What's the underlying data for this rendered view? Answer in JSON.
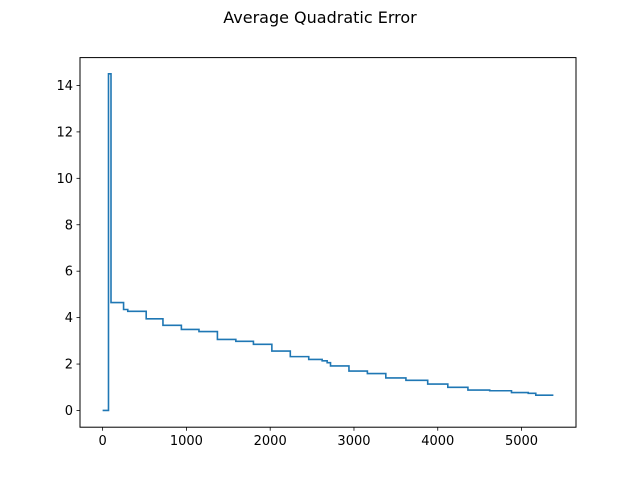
{
  "chart_data": {
    "type": "line",
    "title": "Average Quadratic Error",
    "xlabel": "",
    "ylabel": "",
    "xlim": [
      -270,
      5650
    ],
    "ylim": [
      -0.72,
      15.2
    ],
    "x_ticks": [
      0,
      1000,
      2000,
      3000,
      4000,
      5000
    ],
    "x_tick_labels": [
      "0",
      "1000",
      "2000",
      "3000",
      "4000",
      "5000"
    ],
    "y_ticks": [
      0,
      2,
      4,
      6,
      8,
      10,
      12,
      14
    ],
    "y_tick_labels": [
      "0",
      "2",
      "4",
      "6",
      "8",
      "10",
      "12",
      "14"
    ],
    "grid": false,
    "legend": false,
    "color": "#1f77b4",
    "drawstyle": "steps-post",
    "x": [
      0,
      60,
      70,
      100,
      250,
      300,
      520,
      720,
      940,
      1150,
      1370,
      1590,
      1800,
      2020,
      2240,
      2460,
      2620,
      2680,
      2720,
      2940,
      3160,
      3380,
      3620,
      3880,
      4120,
      4360,
      4620,
      4880,
      5080,
      5130,
      5170,
      5380
    ],
    "y": [
      0.0,
      0.0,
      14.5,
      4.65,
      4.35,
      4.27,
      3.95,
      3.67,
      3.49,
      3.4,
      3.06,
      2.98,
      2.85,
      2.56,
      2.32,
      2.2,
      2.14,
      2.06,
      1.92,
      1.7,
      1.59,
      1.4,
      1.3,
      1.14,
      1.0,
      0.88,
      0.85,
      0.77,
      0.74,
      0.74,
      0.66,
      0.66
    ]
  }
}
